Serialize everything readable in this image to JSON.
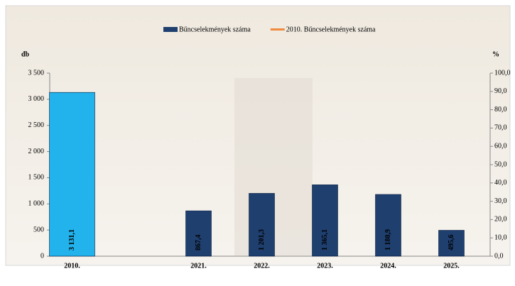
{
  "chart_data": {
    "type": "bar",
    "y_label": "db",
    "y2_label": "%",
    "categories": [
      "2010.",
      null,
      "2021.",
      "2022.",
      "2023.",
      "2024.",
      "2025."
    ],
    "series": [
      {
        "name": "Bűncselekmények száma",
        "color": "#1f3f6f",
        "values": [
          null,
          null,
          867.4,
          1201.3,
          1365.1,
          1180.9,
          495.6
        ],
        "value_labels": [
          null,
          null,
          "867,4",
          "1 201,3",
          "1 365,1",
          "1 180,9",
          "495,6"
        ]
      },
      {
        "name": "2010. Bűncselekmények száma",
        "color": "#f08a3c",
        "bar_color": "#22b2ec",
        "values": [
          3131.1,
          null,
          null,
          null,
          null,
          null,
          null
        ],
        "value_labels": [
          "3 131,1",
          null,
          null,
          null,
          null,
          null,
          null
        ]
      }
    ],
    "ylim": [
      0,
      3500
    ],
    "yticks": [
      0,
      500,
      {
        "value": 1000,
        "label": "1 000"
      },
      {
        "value": 1500,
        "label": "1 500"
      },
      {
        "value": 2000,
        "label": "2 000"
      },
      {
        "value": 2500,
        "label": "2 500"
      },
      {
        "value": 3000,
        "label": "3 000"
      },
      {
        "value": 3500,
        "label": "3 500"
      }
    ],
    "y2lim": [
      0,
      100
    ],
    "y2ticks": [
      {
        "value": 0,
        "label": "0,0"
      },
      {
        "value": 10,
        "label": "10,0"
      },
      {
        "value": 20,
        "label": "20,0"
      },
      {
        "value": 30,
        "label": "30,0"
      },
      {
        "value": 40,
        "label": "40,0"
      },
      {
        "value": 50,
        "label": "50,0"
      },
      {
        "value": 60,
        "label": "60,0"
      },
      {
        "value": 70,
        "label": "70,0"
      },
      {
        "value": 80,
        "label": "80,0"
      },
      {
        "value": 90,
        "label": "90,0"
      },
      {
        "value": 100,
        "label": "100,0"
      }
    ]
  }
}
